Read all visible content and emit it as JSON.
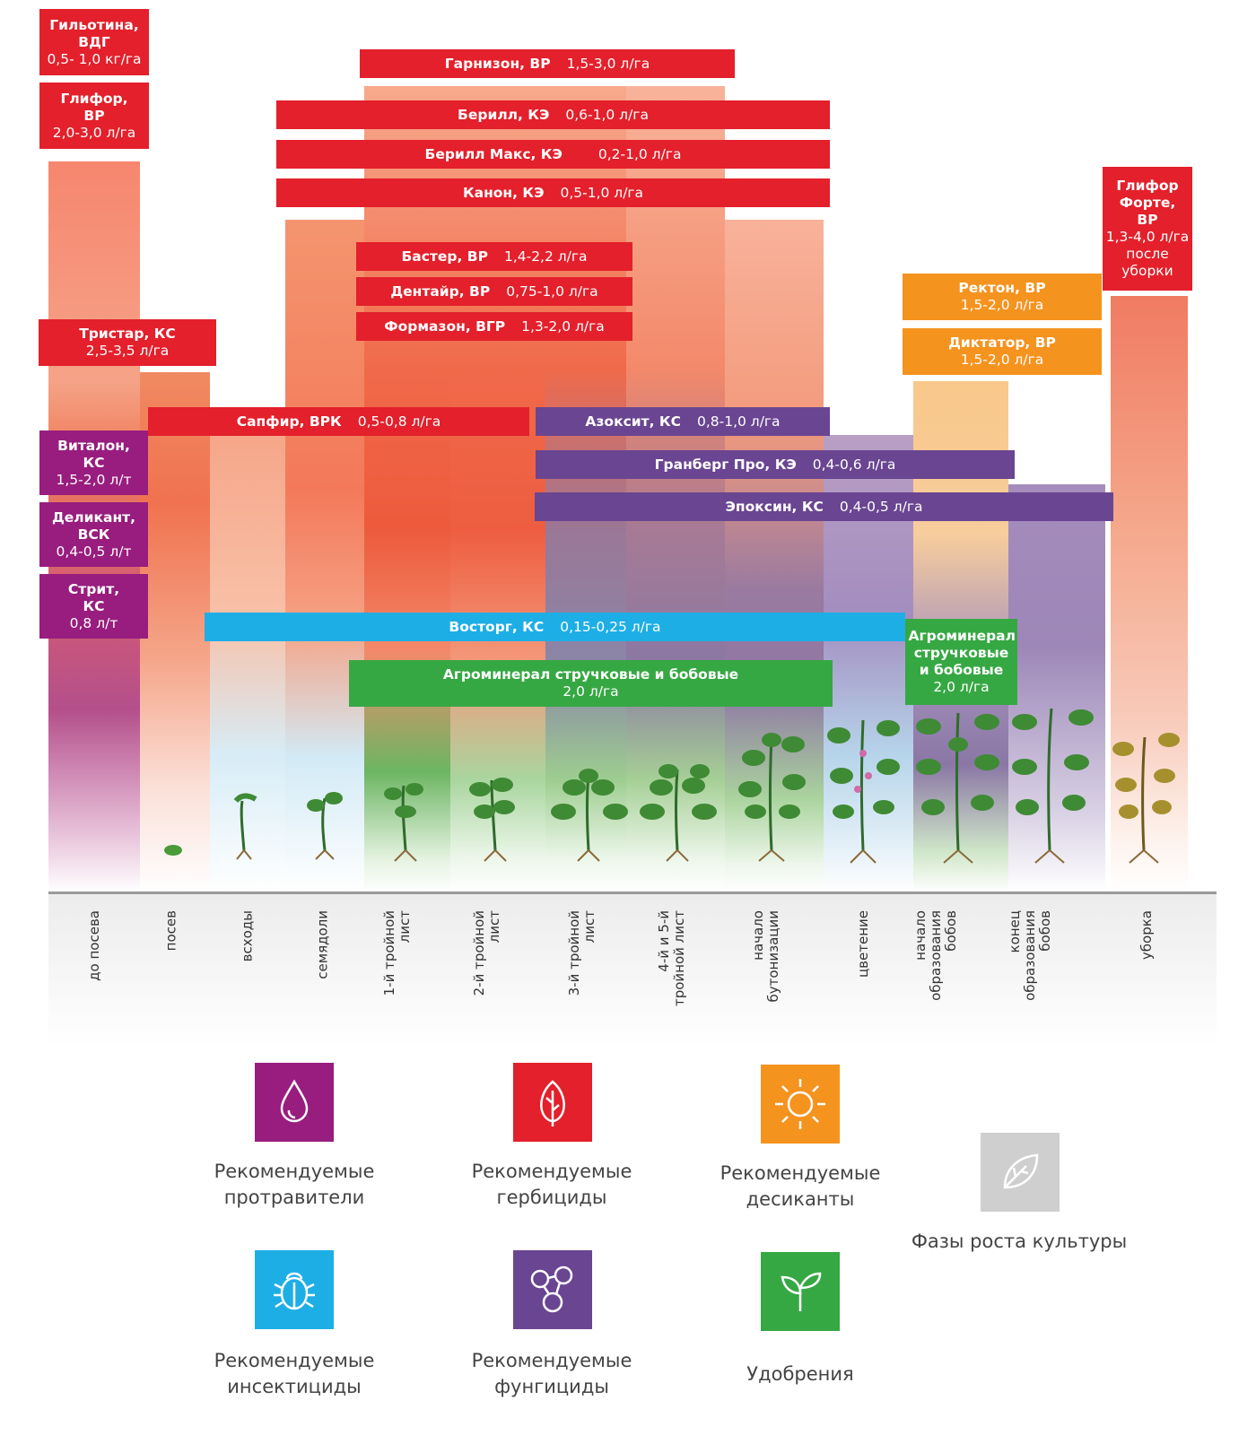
{
  "stages": [
    "до посева",
    "посев",
    "всходы",
    "семядоли",
    "1-й тройной лист",
    "2-й тройной лист",
    "3-й тройной лист",
    "4-й и 5-й тройной лист",
    "начало бутонизации",
    "цветение",
    "начало образования бобов",
    "конец образования бобов",
    "уборка"
  ],
  "products": {
    "gilotina": {
      "name": "Гильотина, ВДГ",
      "rate": "0,5- 1,0 кг/га"
    },
    "glifor": {
      "name": "Глифор, ВР",
      "rate": "2,0-3,0 л/га"
    },
    "garnizon": {
      "name": "Гарнизон, ВР",
      "rate": "1,5-3,0 л/га"
    },
    "berill": {
      "name": "Берилл, КЭ",
      "rate": "0,6-1,0 л/га"
    },
    "berill_max": {
      "name": "Берилл Макс, КЭ",
      "rate": "0,2-1,0 л/га"
    },
    "kanon": {
      "name": "Канон, КЭ",
      "rate": "0,5-1,0 л/га"
    },
    "baster": {
      "name": "Бастер, ВР",
      "rate": "1,4-2,2 л/га"
    },
    "dentair": {
      "name": "Дентайр, ВР",
      "rate": "0,75-1,0 л/га"
    },
    "formazon": {
      "name": "Формазон, ВГР",
      "rate": "1,3-2,0 л/га"
    },
    "tristar": {
      "name": "Тристар, КС",
      "rate": "2,5-3,5 л/га"
    },
    "sapfir": {
      "name": "Сапфир, ВРК",
      "rate": "0,5-0,8 л/га"
    },
    "azoksit": {
      "name": "Азоксит, КС",
      "rate": "0,8-1,0 л/га"
    },
    "granberg": {
      "name": "Гранберг Про, КЭ",
      "rate": "0,4-0,6 л/га"
    },
    "epoksin": {
      "name": "Эпоксин, КС",
      "rate": "0,4-0,5 л/га"
    },
    "vitalon": {
      "name": "Виталон, КС",
      "rate": "1,5-2,0 л/т"
    },
    "delikant": {
      "name": "Деликант, ВСК",
      "rate": "0,4-0,5 л/т"
    },
    "strit": {
      "name": "Стрит, КС",
      "rate": "0,8 л/т"
    },
    "vostorg": {
      "name": "Восторг, КС",
      "rate": "0,15-0,25 л/га"
    },
    "agromineral": {
      "name": "Агроминерал стручковые и бобовые",
      "rate": "2,0 л/га"
    },
    "agromineral2": {
      "name": "Агроминерал стручковые и бобовые",
      "rate": "2,0 л/га"
    },
    "rekton": {
      "name": "Ректон, ВР",
      "rate": "1,5-2,0 л/га"
    },
    "diktator": {
      "name": "Диктатор, ВР",
      "rate": "1,5-2,0 л/га"
    },
    "glifor_forte": {
      "name": "Глифор Форте, ВР",
      "rate": "1,3-4,0 л/га",
      "note": "после уборки"
    }
  },
  "legend": [
    {
      "icon": "drop-icon",
      "label": "Рекомендуемые протравители",
      "color": "#981d7e"
    },
    {
      "icon": "leaf-icon",
      "label": "Рекомендуемые гербициды",
      "color": "#e3202b"
    },
    {
      "icon": "sun-icon",
      "label": "Рекомендуемые десиканты",
      "color": "#f5931f"
    },
    {
      "icon": "plant-leaf-icon",
      "label": "Фазы роста культуры",
      "color": "#cfcfcf"
    },
    {
      "icon": "bug-icon",
      "label": "Рекомендуемые инсектициды",
      "color": "#1eaee6"
    },
    {
      "icon": "molecule-icon",
      "label": "Рекомендуемые фунгициды",
      "color": "#6a4591"
    },
    {
      "icon": "sprout-icon",
      "label": "Удобрения",
      "color": "#36a843"
    }
  ]
}
